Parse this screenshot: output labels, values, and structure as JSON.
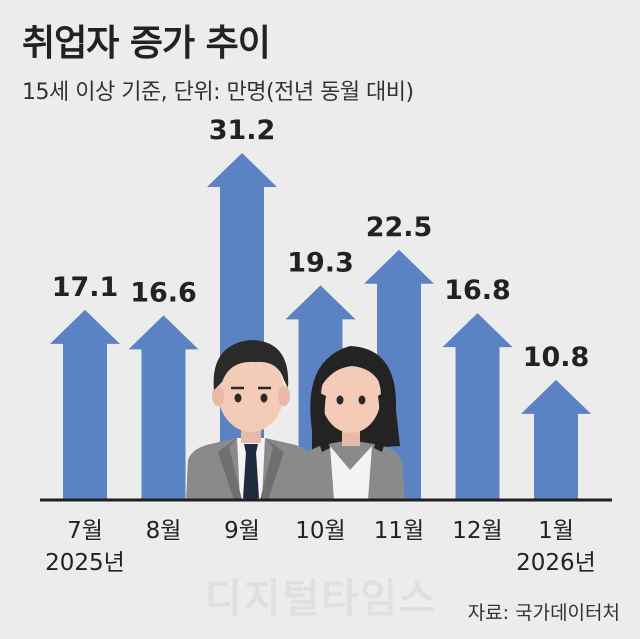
{
  "title": "취업자 증가 추이",
  "subtitle": "15세 이상 기준, 단위: 만명(전년 동월 대비)",
  "source": "자료: 국가데이터처",
  "watermark": "디지털타임스",
  "colors": {
    "arrow": "#5b83c4",
    "background": "#ececec",
    "baseline": "#1f1f1f",
    "text": "#222222"
  },
  "chart_data": {
    "type": "bar",
    "title": "취업자 증가 추이",
    "subtitle": "15세 이상 기준, 단위: 만명(전년 동월 대비)",
    "categories": [
      "7월",
      "8월",
      "9월",
      "10월",
      "11월",
      "12월",
      "1월"
    ],
    "category_sublabels": [
      "2025년",
      "",
      "",
      "",
      "",
      "",
      "2026년"
    ],
    "values": [
      17.1,
      16.6,
      31.2,
      19.3,
      22.5,
      16.8,
      10.8
    ],
    "value_labels": [
      "17.1",
      "16.6",
      "31.2",
      "19.3",
      "22.5",
      "16.8",
      "10.8"
    ],
    "ylim": [
      0,
      31.2
    ],
    "grid": false,
    "mark_shape": "arrow"
  },
  "illustration": {
    "people": [
      "man-in-suit",
      "woman-in-blazer"
    ]
  }
}
